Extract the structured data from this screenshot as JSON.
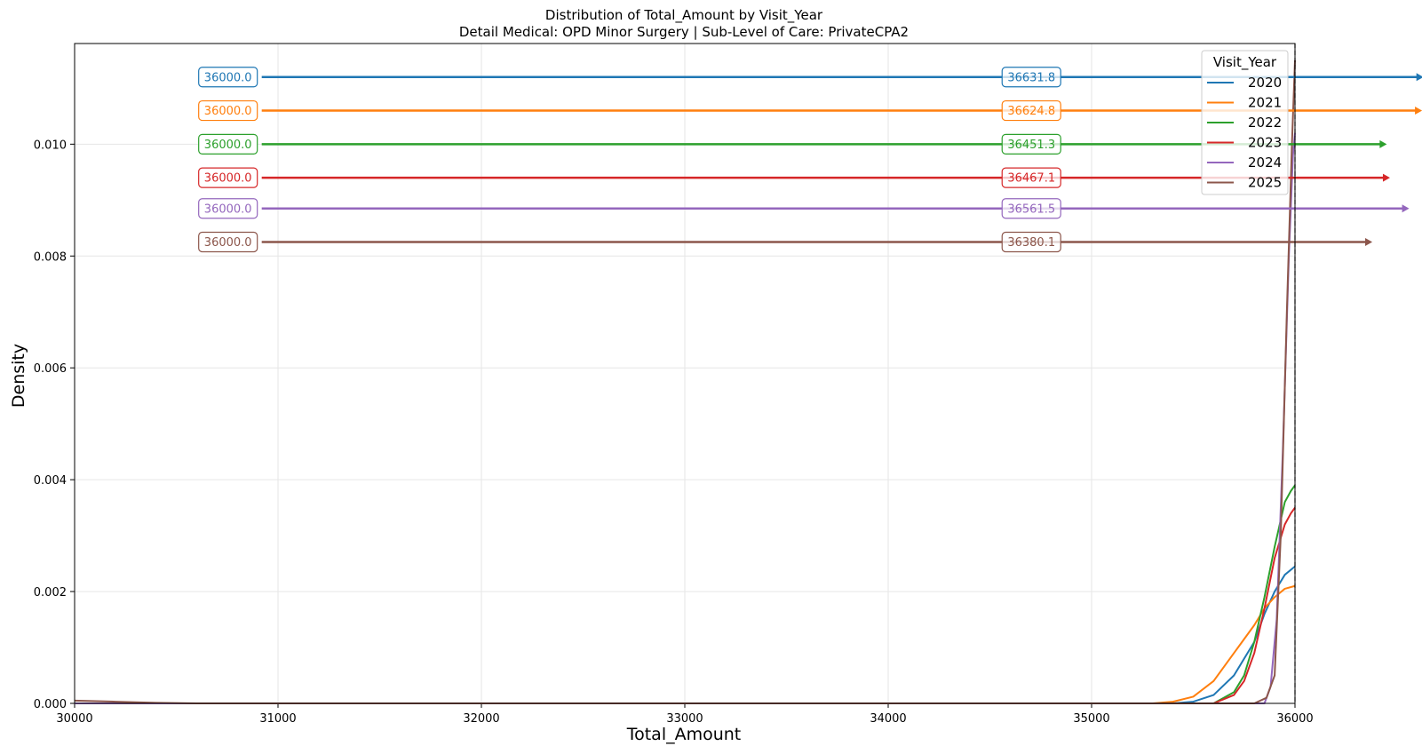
{
  "chart_data": {
    "type": "line",
    "title": "Distribution of Total_Amount by Visit_Year",
    "subtitle": "Detail Medical: OPD Minor Surgery | Sub-Level of Care: PrivateCPA2",
    "xlabel": "Total_Amount",
    "ylabel": "Density",
    "xlim": [
      30000,
      36000
    ],
    "ylim": [
      0,
      0.0118
    ],
    "x_ticks": [
      "30000",
      "31000",
      "32000",
      "33000",
      "34000",
      "35000",
      "36000"
    ],
    "y_ticks": [
      "0.000",
      "0.002",
      "0.004",
      "0.006",
      "0.008",
      "0.010"
    ],
    "grid": true,
    "legend_title": "Visit_Year",
    "legend_position": "top-right",
    "reference_line_x": 36000,
    "series": [
      {
        "name": "2020",
        "color": "#1f77b4",
        "x": [
          30000,
          35400,
          35500,
          35600,
          35700,
          35800,
          35850,
          35900,
          35950,
          36000
        ],
        "y": [
          0.0,
          0.0,
          3e-05,
          0.00015,
          0.0005,
          0.0011,
          0.0016,
          0.002,
          0.0023,
          0.00245
        ],
        "left_label": "36000.0",
        "right_label": "36631.8",
        "arrow_y": 0.0112
      },
      {
        "name": "2021",
        "color": "#ff7f0e",
        "x": [
          30000,
          35300,
          35400,
          35500,
          35600,
          35700,
          35800,
          35850,
          35900,
          35950,
          36000
        ],
        "y": [
          0.0,
          0.0,
          3e-05,
          0.00012,
          0.0004,
          0.0009,
          0.0014,
          0.0017,
          0.0019,
          0.00205,
          0.0021
        ],
        "left_label": "36000.0",
        "right_label": "36624.8",
        "arrow_y": 0.0106
      },
      {
        "name": "2022",
        "color": "#2ca02c",
        "x": [
          30000,
          35600,
          35700,
          35750,
          35800,
          35850,
          35900,
          35950,
          35980,
          36000
        ],
        "y": [
          0.0,
          0.0,
          0.0002,
          0.0005,
          0.0011,
          0.0019,
          0.0028,
          0.0036,
          0.0038,
          0.0039
        ],
        "left_label": "36000.0",
        "right_label": "36451.3",
        "arrow_y": 0.01
      },
      {
        "name": "2023",
        "color": "#d62728",
        "x": [
          30000,
          35600,
          35700,
          35750,
          35800,
          35850,
          35900,
          35950,
          35980,
          36000
        ],
        "y": [
          0.0,
          0.0,
          0.00015,
          0.0004,
          0.0009,
          0.0017,
          0.0026,
          0.0032,
          0.0034,
          0.0035
        ],
        "left_label": "36000.0",
        "right_label": "36467.1",
        "arrow_y": 0.0094
      },
      {
        "name": "2024",
        "color": "#9467bd",
        "x": [
          30000,
          35850,
          35880,
          35910,
          35940,
          35970,
          35990,
          36000
        ],
        "y": [
          0.0,
          0.0,
          0.0003,
          0.0015,
          0.0045,
          0.008,
          0.0098,
          0.0102
        ],
        "left_label": "36000.0",
        "right_label": "36561.5",
        "arrow_y": 0.00885
      },
      {
        "name": "2025",
        "color": "#8c564b",
        "x": [
          30000,
          30200,
          30400,
          30600,
          35800,
          35860,
          35900,
          35930,
          35960,
          35985,
          36000
        ],
        "y": [
          5e-05,
          3e-05,
          1e-05,
          0.0,
          0.0,
          0.0001,
          0.0005,
          0.003,
          0.007,
          0.01,
          0.0115
        ],
        "left_label": "36000.0",
        "right_label": "36380.1",
        "arrow_y": 0.00825
      }
    ]
  }
}
